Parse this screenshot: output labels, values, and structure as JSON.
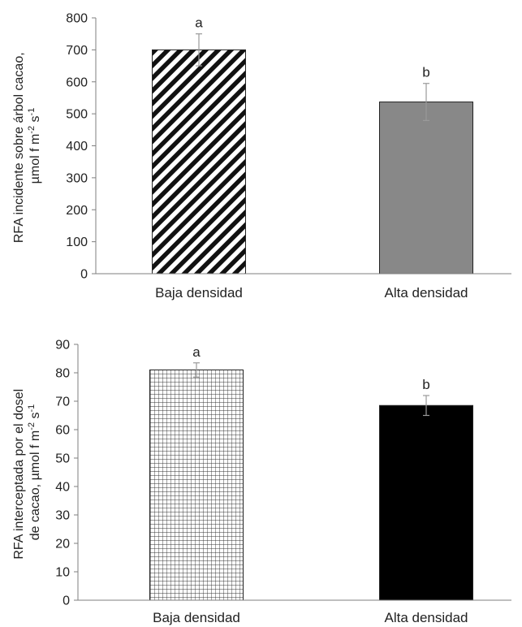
{
  "chart_data": [
    {
      "type": "bar",
      "categories": [
        "Baja densidad",
        "Alta densidad"
      ],
      "values": [
        700,
        537
      ],
      "error": [
        50,
        58
      ],
      "significance": [
        "a",
        "b"
      ],
      "ylabel_lines": [
        "RFA incidente sobre árbol cacao,",
        "µmol f m",
        "-2",
        " s",
        "-1"
      ],
      "ylim": [
        0,
        800
      ],
      "yticks": [
        0,
        100,
        200,
        300,
        400,
        500,
        600,
        700,
        800
      ],
      "bar_fills": [
        "diagonal-hatch",
        "#888888"
      ],
      "grid": false
    },
    {
      "type": "bar",
      "categories": [
        "Baja densidad",
        "Alta densidad"
      ],
      "values": [
        81,
        68.5
      ],
      "error": [
        2.5,
        3.5
      ],
      "significance": [
        "a",
        "b"
      ],
      "ylabel_lines": [
        "RFA interceptada por el dosel",
        "de cacao, µmol f m",
        "-2",
        " s",
        "-1"
      ],
      "ylim": [
        0,
        90
      ],
      "yticks": [
        0,
        10,
        20,
        30,
        40,
        50,
        60,
        70,
        80,
        90
      ],
      "bar_fills": [
        "grid-pattern",
        "#000000"
      ],
      "grid": false
    }
  ]
}
